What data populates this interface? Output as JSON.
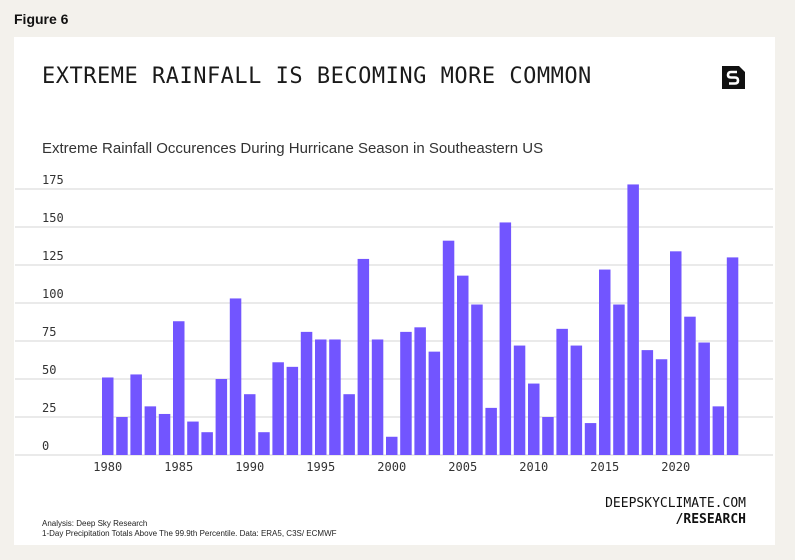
{
  "figure_label": "Figure 6",
  "title": "EXTREME RAINFALL IS BECOMING MORE COMMON",
  "brand": {
    "line1": "DEEPSKYCLIMATE.COM",
    "line2": "/RESEARCH",
    "logo_text": "S"
  },
  "notes": {
    "line1": "Analysis: Deep Sky Research",
    "line2": "1-Day Precipitation Totals Above The 99.9th Percentile. Data: ERA5, C3S/ ECMWF"
  },
  "colors": {
    "bar": "#7255ff",
    "grid": "#e3e3e3",
    "background": "#f3f1ec"
  },
  "chart_data": {
    "type": "bar",
    "title": "Extreme Rainfall Occurences During Hurricane Season in Southeastern US",
    "xlabel": "",
    "ylabel": "",
    "ylim": [
      0,
      175
    ],
    "yticks": [
      0,
      25,
      50,
      75,
      100,
      125,
      150,
      175
    ],
    "xticks": [
      1980,
      1985,
      1990,
      1995,
      2000,
      2005,
      2010,
      2015,
      2020
    ],
    "grid": true,
    "categories": [
      1980,
      1981,
      1982,
      1983,
      1984,
      1985,
      1986,
      1987,
      1988,
      1989,
      1990,
      1991,
      1992,
      1993,
      1994,
      1995,
      1996,
      1997,
      1998,
      1999,
      2000,
      2001,
      2002,
      2003,
      2004,
      2005,
      2006,
      2007,
      2008,
      2009,
      2010,
      2011,
      2012,
      2013,
      2014,
      2015,
      2016,
      2017,
      2018,
      2019,
      2020,
      2021,
      2022,
      2023,
      2024
    ],
    "values": [
      51,
      25,
      53,
      32,
      27,
      88,
      22,
      15,
      50,
      103,
      40,
      15,
      61,
      58,
      81,
      76,
      76,
      40,
      129,
      76,
      12,
      81,
      84,
      68,
      141,
      118,
      99,
      31,
      153,
      72,
      47,
      25,
      83,
      72,
      21,
      122,
      99,
      178,
      69,
      63,
      134,
      91,
      74,
      32,
      130
    ]
  }
}
